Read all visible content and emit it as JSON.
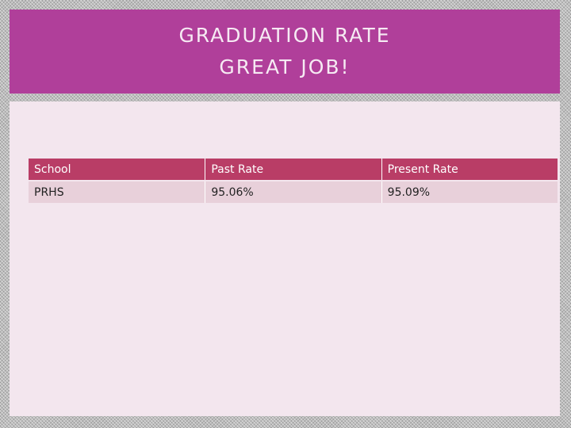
{
  "title": {
    "lines": [
      "GRADUATION RATE",
      "GREAT JOB!"
    ]
  },
  "table": {
    "header": [
      "School",
      "Past Rate",
      "Present Rate"
    ],
    "rows": [
      [
        "PRHS",
        "95.06%",
        "95.09%"
      ]
    ]
  }
}
